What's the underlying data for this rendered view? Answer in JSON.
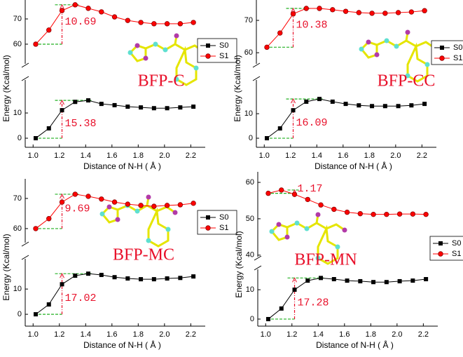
{
  "chart_data": [
    {
      "type": "line",
      "label": "BFP-C",
      "xlabel": "Distance of N-H ( Å )",
      "ylabel": "Energy (Kcal/mol)",
      "x": [
        1.02,
        1.12,
        1.22,
        1.32,
        1.42,
        1.52,
        1.62,
        1.72,
        1.82,
        1.92,
        2.02,
        2.12,
        2.22
      ],
      "series": [
        {
          "name": "S0",
          "color": "#000000",
          "marker": "square",
          "values": [
            0,
            3.9,
            11.1,
            14.4,
            15.0,
            13.6,
            13.1,
            12.5,
            12.2,
            11.9,
            11.9,
            12.2,
            12.5
          ]
        },
        {
          "name": "S1",
          "color": "#ff0000",
          "marker": "circle",
          "values": [
            60.0,
            65.6,
            73.3,
            75.6,
            74.2,
            72.8,
            70.8,
            69.4,
            68.6,
            68.1,
            68.1,
            68.1,
            68.6
          ]
        }
      ],
      "annotations": [
        "10.69",
        "15.38"
      ],
      "xlim": [
        0.94,
        2.31
      ],
      "xticks": [
        {
          "value": 1,
          "label": "1.0"
        },
        1.2,
        1.4,
        1.6,
        1.8,
        {
          "value": 2,
          "label": "2.0"
        },
        2.2
      ],
      "ylim": [
        [
          -3.6,
          24.2
        ],
        [
          51.1,
          77.5
        ]
      ],
      "yticks": [
        0,
        10,
        60,
        70
      ],
      "legend": "right"
    },
    {
      "type": "line",
      "label": "BFP-CC",
      "xlabel": "Distance of N-H ( Å )",
      "ylabel": "Energy (Kcal/mol)",
      "x": [
        1.02,
        1.12,
        1.22,
        1.32,
        1.42,
        1.52,
        1.62,
        1.72,
        1.82,
        1.92,
        2.02,
        2.12,
        2.22
      ],
      "series": [
        {
          "name": "S0",
          "color": "#000000",
          "marker": "square",
          "values": [
            0,
            4.0,
            11.4,
            14.9,
            16.0,
            14.9,
            14.0,
            13.4,
            13.1,
            13.1,
            13.1,
            13.4,
            14.0
          ]
        },
        {
          "name": "S1",
          "color": "#ff0000",
          "marker": "circle",
          "values": [
            61.7,
            66.1,
            72.0,
            73.7,
            73.7,
            73.3,
            72.8,
            72.4,
            72.2,
            72.2,
            72.4,
            72.6,
            73.0
          ]
        }
      ],
      "annotations": [
        "10.38",
        "16.09"
      ],
      "xlim": [
        0.94,
        2.31
      ],
      "xticks": [
        {
          "value": 1,
          "label": "1.0"
        },
        1.2,
        1.4,
        1.6,
        1.8,
        {
          "value": 2,
          "label": "2.0"
        },
        2.2
      ],
      "ylim": [
        [
          -3.7,
          24.9
        ],
        [
          55.7,
          76.3
        ]
      ],
      "yticks": [
        0,
        10,
        60,
        70
      ],
      "legend": "right"
    },
    {
      "type": "line",
      "label": "BFP-MC",
      "xlabel": "Distance of N-H ( Å )",
      "ylabel": "Energy (Kcal/mol)",
      "x": [
        1.02,
        1.12,
        1.22,
        1.32,
        1.42,
        1.52,
        1.62,
        1.72,
        1.82,
        1.92,
        2.02,
        2.12,
        2.22
      ],
      "series": [
        {
          "name": "S0",
          "color": "#000000",
          "marker": "square",
          "values": [
            0,
            3.9,
            11.9,
            15.3,
            16.1,
            15.6,
            14.7,
            14.2,
            13.9,
            13.9,
            14.2,
            14.4,
            15.0
          ]
        },
        {
          "name": "S1",
          "color": "#ff0000",
          "marker": "circle",
          "values": [
            60.0,
            63.3,
            68.8,
            71.4,
            70.7,
            69.8,
            68.8,
            68.1,
            67.7,
            67.4,
            67.7,
            67.9,
            68.4
          ]
        }
      ],
      "annotations": [
        "9.69",
        "17.02"
      ],
      "xlim": [
        0.94,
        2.31
      ],
      "xticks": [
        {
          "value": 1,
          "label": "1.0"
        },
        1.2,
        1.4,
        1.6,
        1.8,
        {
          "value": 2,
          "label": "2.0"
        },
        2.2
      ],
      "ylim": [
        [
          -4.7,
          23.1
        ],
        [
          54.4,
          76.5
        ]
      ],
      "yticks": [
        0,
        10,
        60,
        70
      ],
      "legend": "right"
    },
    {
      "type": "line",
      "label": "BFP-MN",
      "xlabel": "Distance of N-H ( Å )",
      "ylabel": "Energy (Kcal/mol)",
      "x": [
        1.02,
        1.12,
        1.22,
        1.32,
        1.42,
        1.52,
        1.62,
        1.72,
        1.82,
        1.92,
        2.02,
        2.12,
        2.22
      ],
      "series": [
        {
          "name": "S0",
          "color": "#000000",
          "marker": "square",
          "values": [
            0,
            3.6,
            10.0,
            13.1,
            14.0,
            13.6,
            13.1,
            12.9,
            12.6,
            12.6,
            12.9,
            13.1,
            13.6
          ]
        },
        {
          "name": "S1",
          "color": "#ff0000",
          "marker": "circle",
          "values": [
            57.0,
            57.9,
            56.7,
            55.3,
            53.8,
            52.6,
            51.8,
            51.4,
            51.2,
            51.2,
            51.3,
            51.3,
            51.2
          ]
        }
      ],
      "annotations": [
        "1.17",
        "17.28"
      ],
      "xlim": [
        0.94,
        2.31
      ],
      "xticks": [
        {
          "value": 1,
          "label": "1.0"
        },
        1.2,
        1.4,
        1.6,
        1.8,
        {
          "value": 2,
          "label": "2.0"
        },
        2.2
      ],
      "ylim": [
        [
          -2.4,
          17.9
        ],
        [
          38.8,
          62.9
        ]
      ],
      "yticks": [
        0,
        10,
        40,
        50,
        60
      ],
      "legend": "right"
    }
  ]
}
